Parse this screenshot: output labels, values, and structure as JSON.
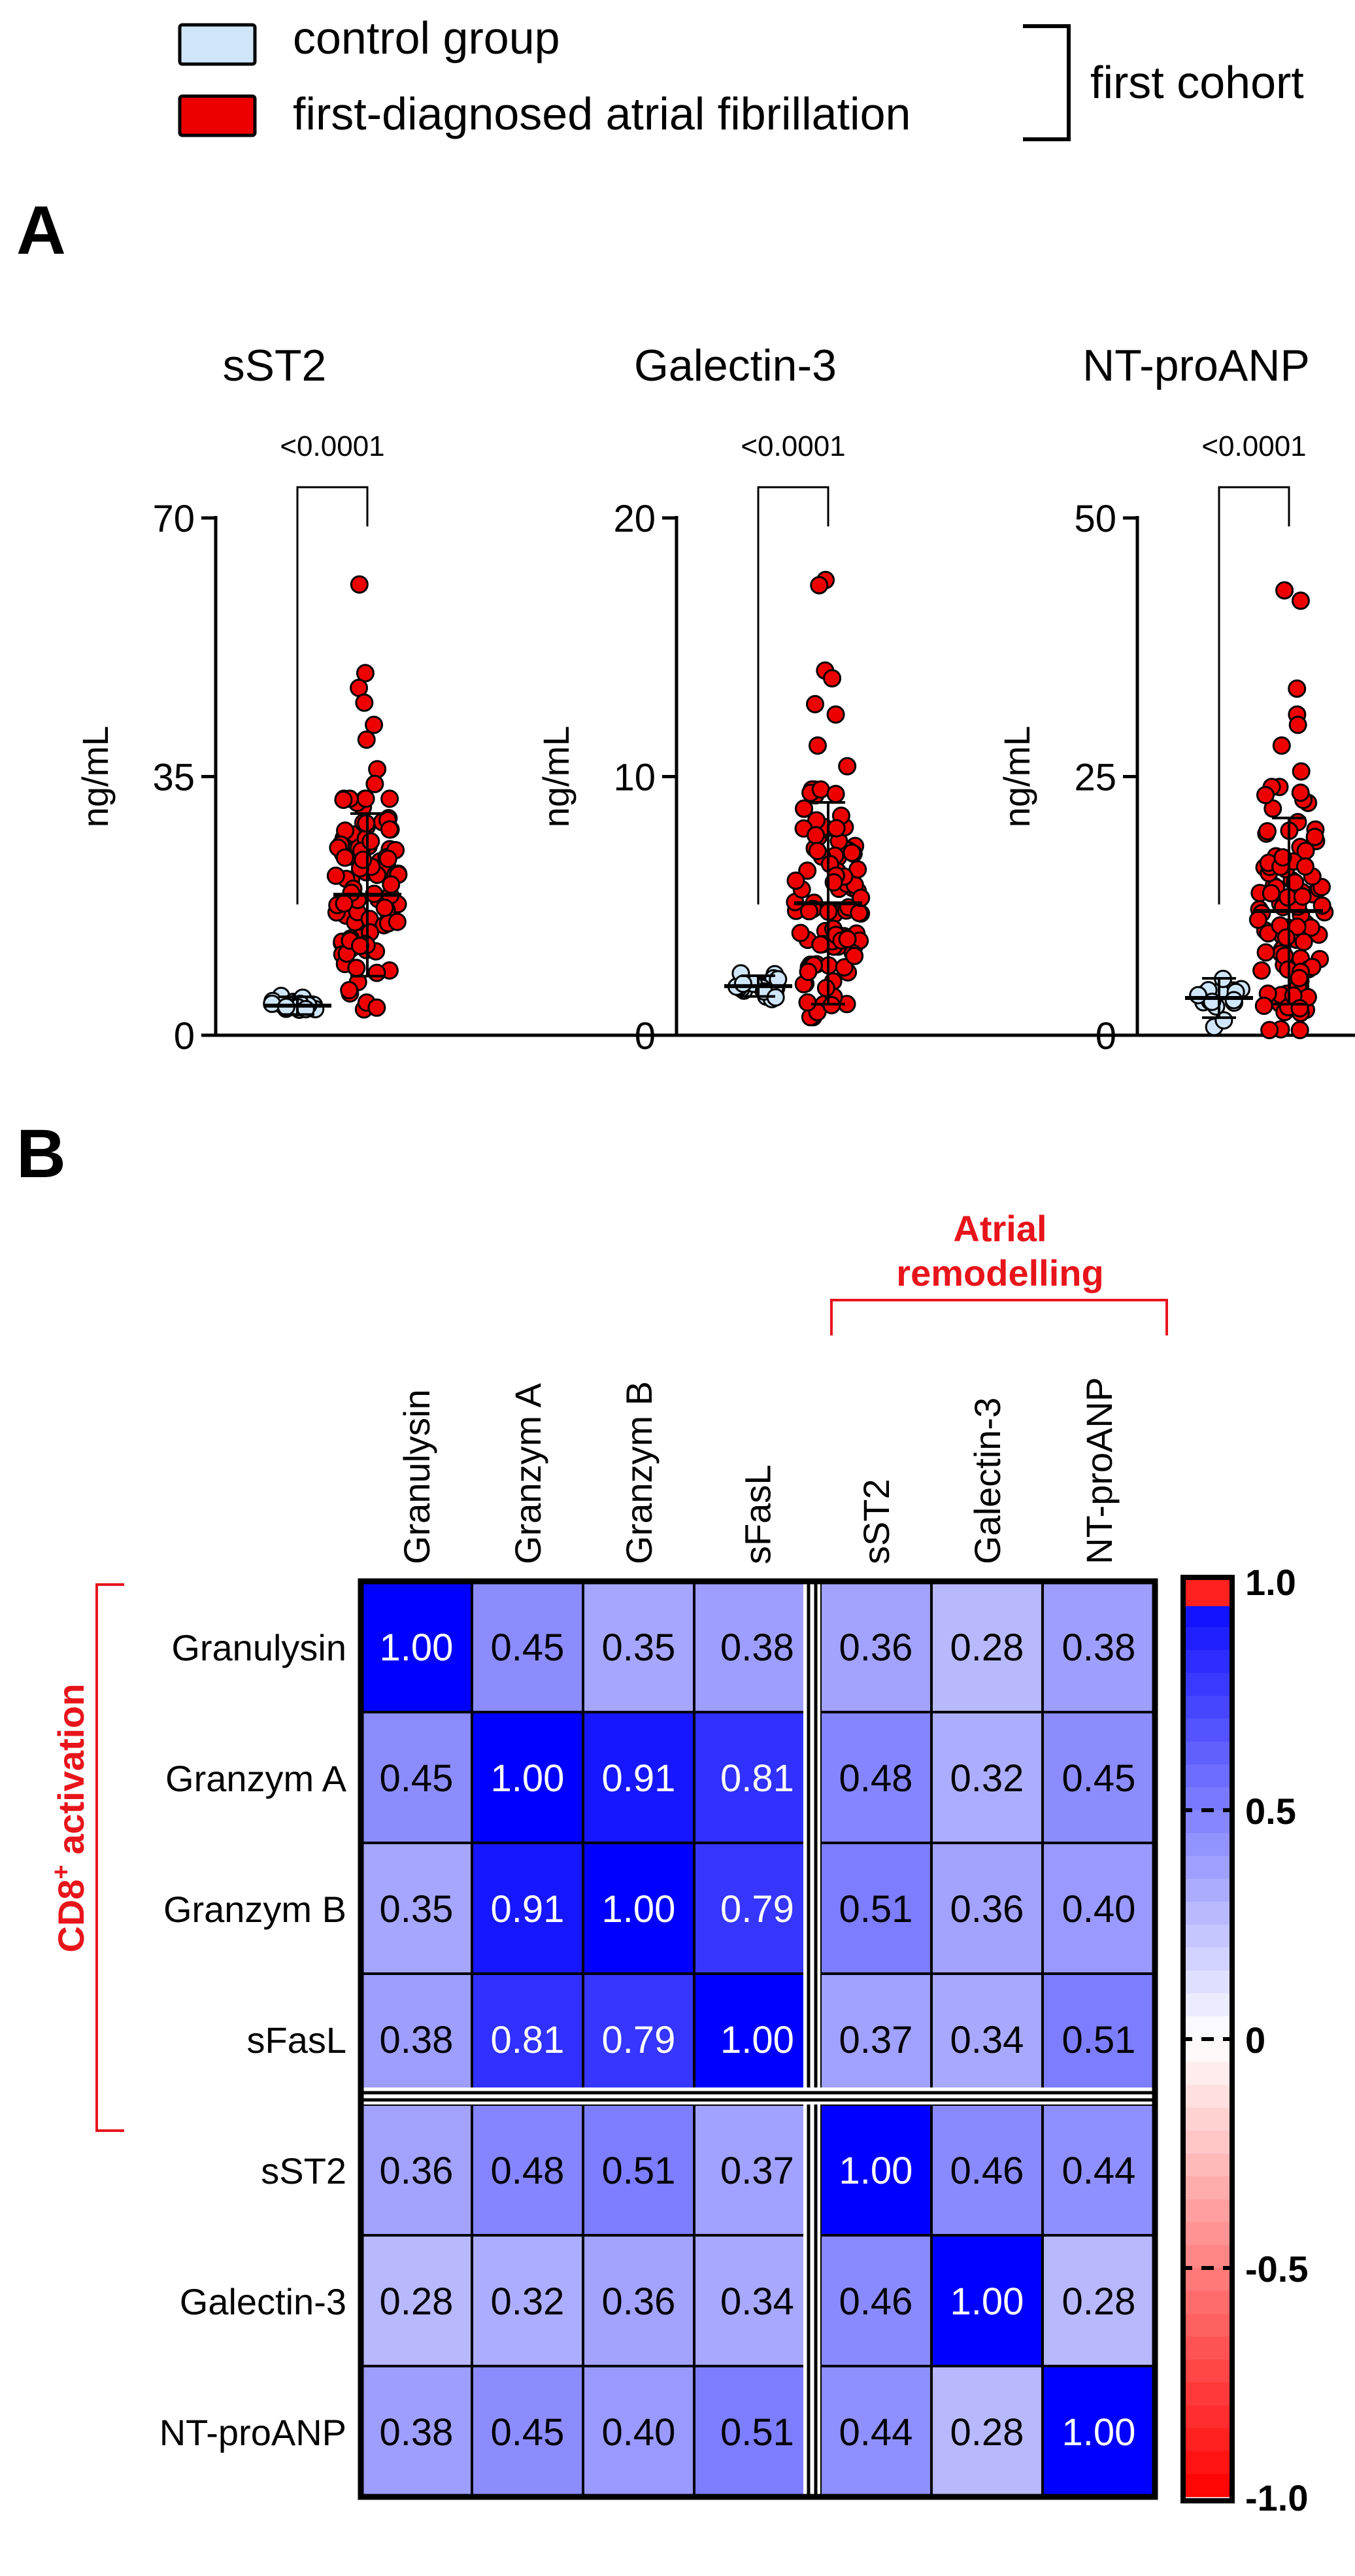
{
  "legend": {
    "items": [
      {
        "label": "control group",
        "color": "#cfe6fa"
      },
      {
        "label": "first-diagnosed atrial fibrillation",
        "color": "#ee0000"
      }
    ],
    "bracket_label": "first cohort"
  },
  "panel_a": {
    "letter": "A"
  },
  "panel_b": {
    "letter": "B"
  },
  "chart_data": [
    {
      "type": "scatter",
      "title": "sST2",
      "ylabel": "ng/mL",
      "ylim": [
        0,
        70
      ],
      "yticks": [
        0,
        35,
        70
      ],
      "pvalue": "<0.0001",
      "groups": [
        {
          "name": "control group",
          "mean": 4,
          "sd": 1.2,
          "n": 20,
          "min": 1.5,
          "max": 6.5,
          "outliers": []
        },
        {
          "name": "first-diagnosed atrial fibrillation",
          "mean": 19,
          "sd": 11,
          "n": 95,
          "min": 3.5,
          "max": 32,
          "outliers": [
            61,
            49,
            47,
            45,
            42,
            40,
            36,
            34
          ]
        }
      ]
    },
    {
      "type": "scatter",
      "title": "Galectin-3",
      "ylabel": "ng/mL",
      "ylim": [
        0,
        20
      ],
      "yticks": [
        0,
        10,
        20
      ],
      "pvalue": "<0.0001",
      "groups": [
        {
          "name": "control group",
          "mean": 1.9,
          "sd": 0.4,
          "n": 20,
          "min": 0.6,
          "max": 3.2,
          "outliers": []
        },
        {
          "name": "first-diagnosed atrial fibrillation",
          "mean": 5.1,
          "sd": 3.9,
          "n": 95,
          "min": 0.7,
          "max": 9.5,
          "outliers": [
            17.6,
            17.4,
            14.1,
            13.8,
            12.8,
            12.4,
            11.2,
            10.4
          ]
        }
      ]
    },
    {
      "type": "scatter",
      "title": "NT-proANP",
      "ylabel": "ng/mL",
      "ylim": [
        0,
        50
      ],
      "yticks": [
        0,
        25,
        50
      ],
      "pvalue": "<0.0001",
      "groups": [
        {
          "name": "control group",
          "mean": 3.6,
          "sd": 1.9,
          "n": 20,
          "min": 0.8,
          "max": 7.5,
          "outliers": []
        },
        {
          "name": "first-diagnosed atrial fibrillation",
          "mean": 12,
          "sd": 9,
          "n": 95,
          "min": 0.5,
          "max": 24,
          "outliers": [
            43,
            42,
            33.5,
            31,
            30,
            28,
            25.5
          ]
        }
      ]
    },
    {
      "type": "heatmap",
      "labels": [
        "Granulysin",
        "Granzym A",
        "Granzym B",
        "sFasL",
        "sST2",
        "Galectin-3",
        "NT-proANP"
      ],
      "values": [
        [
          1.0,
          0.45,
          0.35,
          0.38,
          0.36,
          0.28,
          0.38
        ],
        [
          0.45,
          1.0,
          0.91,
          0.81,
          0.48,
          0.32,
          0.45
        ],
        [
          0.35,
          0.91,
          1.0,
          0.79,
          0.51,
          0.36,
          0.4
        ],
        [
          0.38,
          0.81,
          0.79,
          1.0,
          0.37,
          0.34,
          0.51
        ],
        [
          0.36,
          0.48,
          0.51,
          0.37,
          1.0,
          0.46,
          0.44
        ],
        [
          0.28,
          0.32,
          0.36,
          0.34,
          0.46,
          1.0,
          0.28
        ],
        [
          0.38,
          0.45,
          0.4,
          0.51,
          0.44,
          0.28,
          1.0
        ]
      ],
      "group_labels": {
        "row_group": "CD8",
        "row_group_sup": "+",
        "row_group_suffix": " activation",
        "col_group_line1": "Atrial",
        "col_group_line2": "remodelling"
      },
      "colorbar": {
        "range": [
          -1.0,
          1.0
        ],
        "ticks": [
          1.0,
          0.5,
          0,
          -0.5,
          -1.0
        ],
        "tick_labels": [
          "1.0",
          "0.5",
          "0",
          "-0.5",
          "-1.0"
        ],
        "positive_color": "#0000ff",
        "negative_color": "#ff0000"
      }
    }
  ]
}
